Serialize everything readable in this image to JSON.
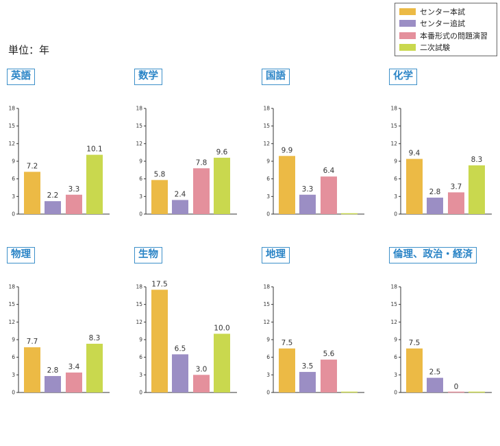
{
  "unit_label": "単位：年",
  "legend": [
    {
      "label": "センター本試",
      "color": "#ecba45"
    },
    {
      "label": "センター追試",
      "color": "#9b8ec4"
    },
    {
      "label": "本番形式の問題演習",
      "color": "#e4909c"
    },
    {
      "label": "二次試験",
      "color": "#c9d84e"
    }
  ],
  "chart_data": [
    {
      "type": "bar",
      "title": "英語",
      "categories": [
        "センター本試",
        "センター追試",
        "本番形式の問題演習",
        "二次試験"
      ],
      "values": [
        7.2,
        2.2,
        3.3,
        10.1
      ],
      "labels": [
        "7.2",
        "2.2",
        "3.3",
        "10.1"
      ],
      "ylim": [
        0,
        18
      ],
      "yticks": [
        "0",
        "3",
        "6",
        "9",
        "12",
        "15",
        "18"
      ]
    },
    {
      "type": "bar",
      "title": "数学",
      "categories": [
        "センター本試",
        "センター追試",
        "本番形式の問題演習",
        "二次試験"
      ],
      "values": [
        5.8,
        2.4,
        7.8,
        9.6
      ],
      "labels": [
        "5.8",
        "2.4",
        "7.8",
        "9.6"
      ],
      "ylim": [
        0,
        18
      ],
      "yticks": [
        "0",
        "3",
        "6",
        "9",
        "12",
        "15",
        "18"
      ]
    },
    {
      "type": "bar",
      "title": "国語",
      "categories": [
        "センター本試",
        "センター追試",
        "本番形式の問題演習",
        "二次試験"
      ],
      "values": [
        9.9,
        3.3,
        6.4,
        0
      ],
      "labels": [
        "9.9",
        "3.3",
        "6.4",
        ""
      ],
      "ylim": [
        0,
        18
      ],
      "yticks": [
        "0",
        "3",
        "6",
        "9",
        "12",
        "15",
        "18"
      ]
    },
    {
      "type": "bar",
      "title": "化学",
      "categories": [
        "センター本試",
        "センター追試",
        "本番形式の問題演習",
        "二次試験"
      ],
      "values": [
        9.4,
        2.8,
        3.7,
        8.3
      ],
      "labels": [
        "9.4",
        "2.8",
        "3.7",
        "8.3"
      ],
      "ylim": [
        0,
        18
      ],
      "yticks": [
        "0",
        "3",
        "6",
        "9",
        "12",
        "15",
        "18"
      ]
    },
    {
      "type": "bar",
      "title": "物理",
      "categories": [
        "センター本試",
        "センター追試",
        "本番形式の問題演習",
        "二次試験"
      ],
      "values": [
        7.7,
        2.8,
        3.4,
        8.3
      ],
      "labels": [
        "7.7",
        "2.8",
        "3.4",
        "8.3"
      ],
      "ylim": [
        0,
        18
      ],
      "yticks": [
        "0",
        "3",
        "6",
        "9",
        "12",
        "15",
        "18"
      ]
    },
    {
      "type": "bar",
      "title": "生物",
      "categories": [
        "センター本試",
        "センター追試",
        "本番形式の問題演習",
        "二次試験"
      ],
      "values": [
        17.5,
        6.5,
        3.0,
        10.0
      ],
      "labels": [
        "17.5",
        "6.5",
        "3.0",
        "10.0"
      ],
      "ylim": [
        0,
        18
      ],
      "yticks": [
        "0",
        "3",
        "6",
        "9",
        "12",
        "15",
        "18"
      ]
    },
    {
      "type": "bar",
      "title": "地理",
      "categories": [
        "センター本試",
        "センター追試",
        "本番形式の問題演習",
        "二次試験"
      ],
      "values": [
        7.5,
        3.5,
        5.6,
        0
      ],
      "labels": [
        "7.5",
        "3.5",
        "5.6",
        ""
      ],
      "ylim": [
        0,
        18
      ],
      "yticks": [
        "0",
        "3",
        "6",
        "9",
        "12",
        "15",
        "18"
      ]
    },
    {
      "type": "bar",
      "title": "倫理、政治・経済",
      "categories": [
        "センター本試",
        "センター追試",
        "本番形式の問題演習",
        "二次試験"
      ],
      "values": [
        7.5,
        2.5,
        0,
        0
      ],
      "labels": [
        "7.5",
        "2.5",
        "0",
        ""
      ],
      "ylim": [
        0,
        18
      ],
      "yticks": [
        "0",
        "3",
        "6",
        "9",
        "12",
        "15",
        "18"
      ]
    }
  ]
}
